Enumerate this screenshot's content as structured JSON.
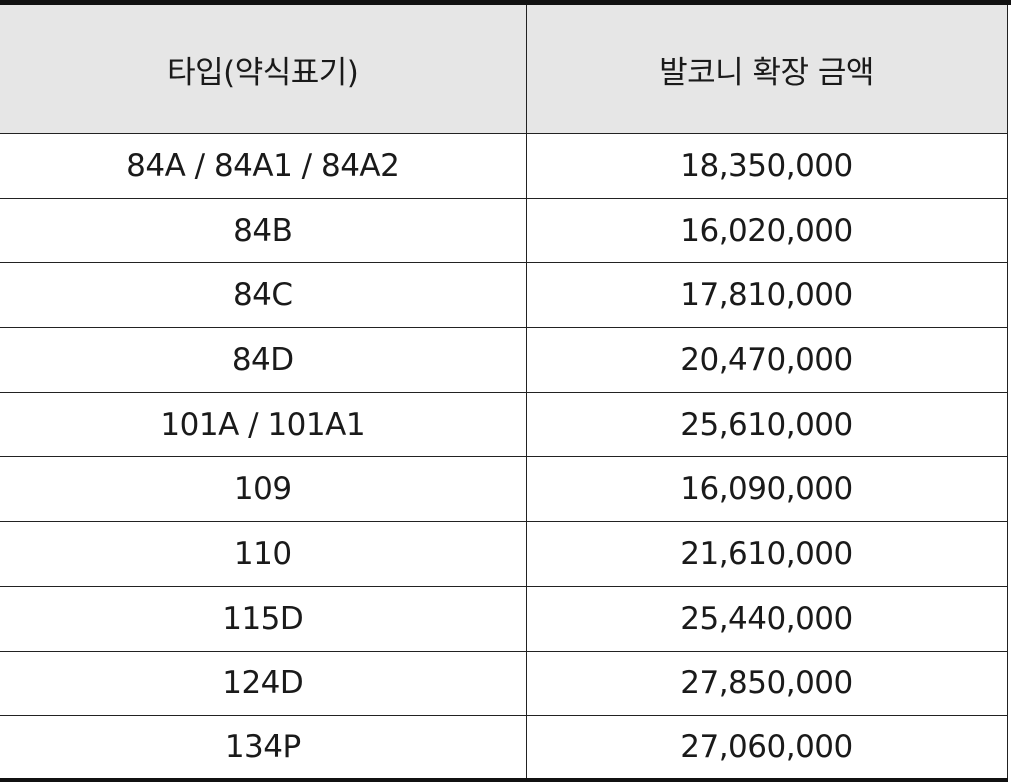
{
  "table": {
    "headers": {
      "type": "타입(약식표기)",
      "amount": "발코니 확장 금액"
    },
    "rows": [
      {
        "type": "84A / 84A1 / 84A2",
        "amount": "18,350,000"
      },
      {
        "type": "84B",
        "amount": "16,020,000"
      },
      {
        "type": "84C",
        "amount": "17,810,000"
      },
      {
        "type": "84D",
        "amount": "20,470,000"
      },
      {
        "type": "101A / 101A1",
        "amount": "25,610,000"
      },
      {
        "type": "109",
        "amount": "16,090,000"
      },
      {
        "type": "110",
        "amount": "21,610,000"
      },
      {
        "type": "115D",
        "amount": "25,440,000"
      },
      {
        "type": "124D",
        "amount": "27,850,000"
      },
      {
        "type": "134P",
        "amount": "27,060,000"
      }
    ]
  }
}
